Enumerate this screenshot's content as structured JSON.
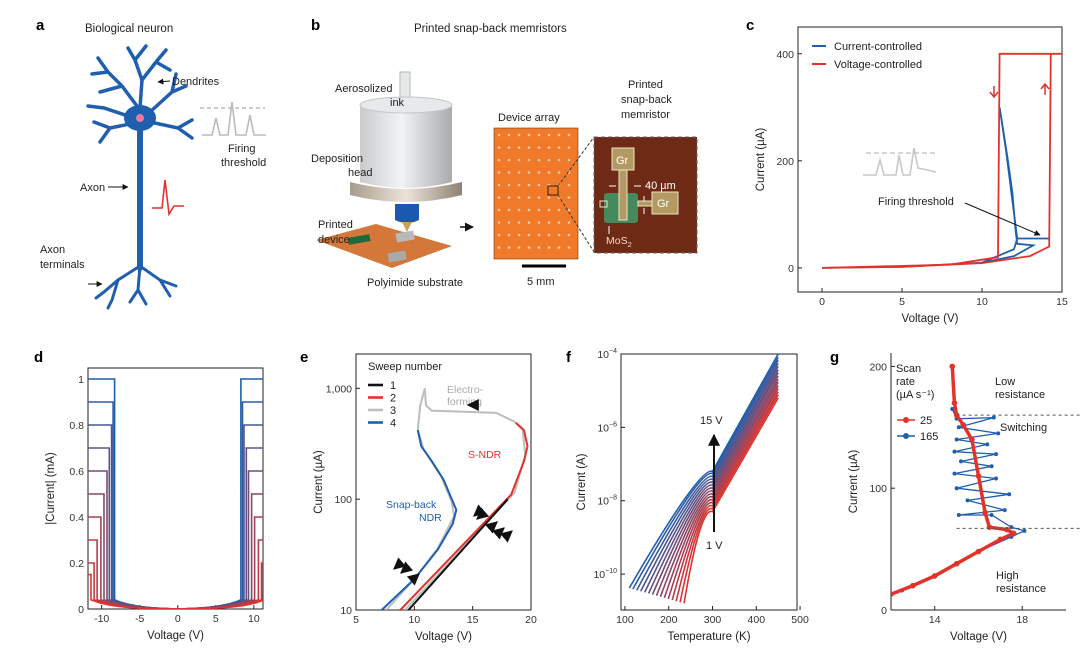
{
  "panels": {
    "a": {
      "letter": "a",
      "title": "Biological neuron",
      "dendrites": "Dendrites",
      "firing_1": "Firing",
      "firing_2": "threshold",
      "axon": "Axon",
      "terminals_1": "Axon",
      "terminals_2": "terminals"
    },
    "b": {
      "letter": "b",
      "title": "Printed snap-back memristors",
      "ink_1": "Aerosolized",
      "ink_2": "ink",
      "head_1": "Deposition",
      "head_2": "head",
      "device_1": "Printed",
      "device_2": "device",
      "substrate": "Polyimide substrate",
      "array": "Device array",
      "scale": "5 mm",
      "inset_1": "Printed",
      "inset_2": "snap-back",
      "inset_3": "memristor",
      "gr": "Gr",
      "width": "40 µm",
      "mos2": "MoS",
      "mos2_sub": "2"
    },
    "c": {
      "letter": "c"
    },
    "d": {
      "letter": "d"
    },
    "e": {
      "letter": "e"
    },
    "f": {
      "letter": "f"
    },
    "g": {
      "letter": "g"
    }
  },
  "colors": {
    "blue": "#1f5fae",
    "red": "#e2332b",
    "gray": "#bdbdbd",
    "black": "#111111",
    "orange": "#f07a2a"
  },
  "chart_data": [
    {
      "id": "c",
      "type": "line",
      "xlabel": "Voltage (V)",
      "ylabel": "Current (µA)",
      "xlim": [
        -1.5,
        15
      ],
      "ylim": [
        -45,
        450
      ],
      "x_ticks": [
        0,
        5,
        10,
        15
      ],
      "y_ticks": [
        0,
        200,
        400
      ],
      "legend": "top-left",
      "annotation": "Firing threshold",
      "series": [
        {
          "name": "Current-controlled",
          "color": "blue",
          "points": [
            [
              0,
              0
            ],
            [
              5,
              2
            ],
            [
              10,
              10
            ],
            [
              12,
              22
            ],
            [
              13.2,
              42
            ],
            [
              12.2,
              45
            ],
            [
              12.1,
              70
            ],
            [
              11.9,
              140
            ],
            [
              11.6,
              205
            ],
            [
              11.1,
              300
            ],
            [
              11.5,
              220
            ],
            [
              12.2,
              55
            ],
            [
              14.2,
              55
            ],
            [
              12.2,
              55
            ],
            [
              12,
              35
            ],
            [
              10,
              10
            ]
          ]
        },
        {
          "name": "Voltage-controlled",
          "color": "red",
          "points": [
            [
              0,
              0
            ],
            [
              5,
              2
            ],
            [
              10,
              9
            ],
            [
              13,
              22
            ],
            [
              14.2,
              40
            ],
            [
              14.3,
              400
            ],
            [
              15,
              400
            ],
            [
              11.1,
              400
            ],
            [
              11,
              20
            ],
            [
              8,
              6
            ],
            [
              0,
              0
            ]
          ]
        }
      ]
    },
    {
      "id": "d",
      "type": "line",
      "xlabel": "Voltage (V)",
      "ylabel": "|Current| (mA)",
      "xlim": [
        -11.8,
        11.2
      ],
      "ylim": [
        0,
        1.048
      ],
      "x_ticks": [
        -10,
        -5,
        0,
        5,
        10
      ],
      "y_ticks": [
        0,
        0.2,
        0.4,
        0.6,
        0.8,
        1.0
      ],
      "series": [
        {
          "compliance": 1.0,
          "threshold": 8.3
        },
        {
          "compliance": 0.9,
          "threshold": 8.5
        },
        {
          "compliance": 0.8,
          "threshold": 8.7
        },
        {
          "compliance": 0.7,
          "threshold": 9.0
        },
        {
          "compliance": 0.6,
          "threshold": 9.3
        },
        {
          "compliance": 0.5,
          "threshold": 9.7
        },
        {
          "compliance": 0.4,
          "threshold": 10.1
        },
        {
          "compliance": 0.3,
          "threshold": 10.6
        },
        {
          "compliance": 0.2,
          "threshold": 11.0
        },
        {
          "compliance": 0.15,
          "threshold": 11.4
        }
      ]
    },
    {
      "id": "e",
      "type": "line",
      "xlabel": "Voltage (V)",
      "ylabel": "Current (µA)",
      "yscale": "log",
      "xlim": [
        5,
        20
      ],
      "ylim": [
        10,
        2040
      ],
      "x_ticks": [
        5,
        10,
        15,
        20
      ],
      "y_ticks": [
        10,
        100,
        1000
      ],
      "y_tick_labels": [
        "10",
        "100",
        "1,000"
      ],
      "legend_title": "Sweep number",
      "legend": "top-left",
      "annotations": {
        "electro_1": "Electro-",
        "electro_2": "forming",
        "sndr": "S-NDR",
        "snap_1": "Snap-back",
        "snap_2": "NDR"
      },
      "series": [
        {
          "name": "1",
          "color": "black",
          "points": [
            [
              9.5,
              10
            ],
            [
              18,
              100
            ]
          ]
        },
        {
          "name": "2",
          "color": "red",
          "points": [
            [
              8.8,
              10
            ],
            [
              18.3,
              110
            ],
            [
              19.4,
              220
            ],
            [
              19.7,
              300
            ],
            [
              19.4,
              420
            ],
            [
              18.7,
              490
            ]
          ]
        },
        {
          "name": "3",
          "color": "gray",
          "points": [
            [
              9.2,
              10
            ],
            [
              18.6,
              115
            ],
            [
              19.5,
              250
            ],
            [
              19.3,
              420
            ],
            [
              18.6,
              500
            ],
            [
              17,
              600
            ],
            [
              11.5,
              630
            ],
            [
              11,
              700
            ],
            [
              10.9,
              1000
            ],
            [
              10.5,
              700
            ],
            [
              10.3,
              420
            ],
            [
              10.8,
              280
            ],
            [
              12.3,
              160
            ],
            [
              13.2,
              95
            ],
            [
              13.4,
              70
            ],
            [
              12,
              36
            ],
            [
              10,
              19
            ],
            [
              7.6,
              10
            ]
          ]
        },
        {
          "name": "4",
          "color": "blue",
          "points": [
            [
              10.3,
              420
            ],
            [
              10.6,
              300
            ],
            [
              11.5,
              220
            ],
            [
              12.5,
              150
            ],
            [
              13.3,
              95
            ],
            [
              13.6,
              80
            ],
            [
              13.3,
              60
            ],
            [
              12,
              35
            ],
            [
              10,
              19
            ],
            [
              7.2,
              10
            ]
          ]
        }
      ]
    },
    {
      "id": "f",
      "type": "line",
      "xlabel": "Temperature (K)",
      "ylabel": "Current (A)",
      "yscale": "log",
      "xlim": [
        91,
        493
      ],
      "ylim_log10": [
        -10.98,
        -4
      ],
      "x_ticks": [
        100,
        200,
        300,
        400,
        500
      ],
      "y_ticks_log10": [
        -4,
        -6,
        -8,
        -10
      ],
      "annotation_top": "15 V",
      "annotation_bottom": "1 V",
      "series": [
        {
          "voltage": 1,
          "points": [
            [
              235,
              -10.8
            ],
            [
              300,
              -8.3
            ],
            [
              450,
              -5.2
            ]
          ]
        },
        {
          "voltage": 2,
          "points": [
            [
              226,
              -10.77
            ],
            [
              300,
              -8.22
            ],
            [
              450,
              -5.11
            ]
          ]
        },
        {
          "voltage": 3,
          "points": [
            [
              217,
              -10.74
            ],
            [
              300,
              -8.14
            ],
            [
              450,
              -5.03
            ]
          ]
        },
        {
          "voltage": 4,
          "points": [
            [
              208,
              -10.71
            ],
            [
              300,
              -8.06
            ],
            [
              450,
              -4.94
            ]
          ]
        },
        {
          "voltage": 5,
          "points": [
            [
              199,
              -10.68
            ],
            [
              300,
              -7.98
            ],
            [
              450,
              -4.86
            ]
          ]
        },
        {
          "voltage": 6,
          "points": [
            [
              190,
              -10.65
            ],
            [
              300,
              -7.9
            ],
            [
              450,
              -4.77
            ]
          ]
        },
        {
          "voltage": 7,
          "points": [
            [
              181,
              -10.62
            ],
            [
              300,
              -7.82
            ],
            [
              450,
              -4.69
            ]
          ]
        },
        {
          "voltage": 8,
          "points": [
            [
              172,
              -10.59
            ],
            [
              300,
              -7.74
            ],
            [
              450,
              -4.6
            ]
          ]
        },
        {
          "voltage": 9,
          "points": [
            [
              163,
              -10.56
            ],
            [
              300,
              -7.66
            ],
            [
              450,
              -4.51
            ]
          ]
        },
        {
          "voltage": 10,
          "points": [
            [
              154,
              -10.53
            ],
            [
              300,
              -7.58
            ],
            [
              450,
              -4.43
            ]
          ]
        },
        {
          "voltage": 11,
          "points": [
            [
              145,
              -10.5
            ],
            [
              300,
              -7.5
            ],
            [
              450,
              -4.34
            ]
          ]
        },
        {
          "voltage": 12,
          "points": [
            [
              136,
              -10.47
            ],
            [
              300,
              -7.42
            ],
            [
              450,
              -4.26
            ]
          ]
        },
        {
          "voltage": 13,
          "points": [
            [
              127,
              -10.44
            ],
            [
              300,
              -7.34
            ],
            [
              450,
              -4.17
            ]
          ]
        },
        {
          "voltage": 14,
          "points": [
            [
              118,
              -10.41
            ],
            [
              300,
              -7.26
            ],
            [
              450,
              -4.09
            ]
          ]
        },
        {
          "voltage": 15,
          "points": [
            [
              110,
              -10.38
            ],
            [
              300,
              -7.2
            ],
            [
              450,
              -4.0
            ]
          ]
        }
      ]
    },
    {
      "id": "g",
      "type": "scatter",
      "xlabel": "Voltage (V)",
      "ylabel": "Current (µA)",
      "xlim": [
        12,
        20
      ],
      "ylim": [
        0,
        211
      ],
      "x_ticks": [
        14,
        18
      ],
      "y_ticks": [
        0,
        100,
        200
      ],
      "legend_title_1": "Scan",
      "legend_title_2": "rate",
      "legend_title_3": "(µA s⁻¹)",
      "legend": "top-left",
      "thresholds": [
        160,
        67
      ],
      "annotations": {
        "low_1": "Low",
        "low_2": "resistance",
        "switching": "Switching",
        "high_1": "High",
        "high_2": "resistance"
      },
      "series": [
        {
          "name": "165",
          "color": "blue",
          "points": [
            [
              12.5,
              16
            ],
            [
              14,
              28
            ],
            [
              16,
              48
            ],
            [
              17.5,
              60
            ],
            [
              18.1,
              65
            ],
            [
              17.5,
              68
            ],
            [
              16.6,
              78
            ],
            [
              15.1,
              78
            ],
            [
              17.2,
              82
            ],
            [
              15.5,
              90
            ],
            [
              17.4,
              95
            ],
            [
              15.0,
              100
            ],
            [
              16.8,
              108
            ],
            [
              14.9,
              112
            ],
            [
              16.6,
              118
            ],
            [
              15.2,
              122
            ],
            [
              16.8,
              128
            ],
            [
              14.9,
              130
            ],
            [
              16.4,
              136
            ],
            [
              15.0,
              140
            ],
            [
              16.9,
              145
            ],
            [
              15.1,
              150
            ],
            [
              16.7,
              158
            ],
            [
              15.0,
              157
            ],
            [
              14.8,
              165
            ]
          ]
        },
        {
          "name": "25",
          "color": "red",
          "points": [
            [
              12,
              13
            ],
            [
              13,
              20
            ],
            [
              14,
              28
            ],
            [
              15,
              38
            ],
            [
              16,
              48
            ],
            [
              17,
              58
            ],
            [
              17.6,
              63
            ],
            [
              17.3,
              66
            ],
            [
              16.5,
              68
            ],
            [
              16.3,
              80
            ],
            [
              16,
              110
            ],
            [
              15.7,
              140
            ],
            [
              15.3,
              152
            ],
            [
              15,
              160
            ],
            [
              14.9,
              170
            ],
            [
              14.8,
              200
            ]
          ]
        }
      ]
    }
  ]
}
